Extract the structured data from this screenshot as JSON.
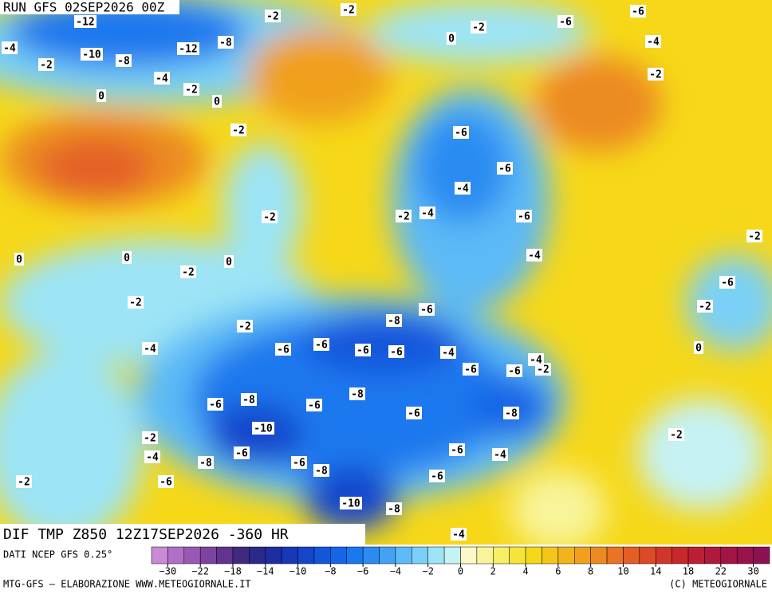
{
  "header": {
    "run": "RUN GFS 02SEP2026 00Z",
    "product": "DIF TMP Z850 12Z17SEP2026 -360 HR"
  },
  "footer": {
    "source": "DATI NCEP GFS 0.25°",
    "credit": "MTG-GFS — ELABORAZIONE WWW.METEOGIORNALE.IT",
    "copyright": "(C) METEOGIORNALE"
  },
  "map": {
    "labels": [
      "-12",
      "-10",
      "-8",
      "-12",
      "-8",
      "-4",
      "-2",
      "-4",
      "-2",
      "0",
      "0",
      "-2",
      "-2",
      "0",
      "-2",
      "-6",
      "-4",
      "-2",
      "-6",
      "-2",
      "-6",
      "-6",
      "-4",
      "-4",
      "-2",
      "-6",
      "-2",
      "0",
      "0",
      "0",
      "-2",
      "-2",
      "-4",
      "-2",
      "-8",
      "-6",
      "-6",
      "-6",
      "-6",
      "-6",
      "-4",
      "-6",
      "-6",
      "-2",
      "-8",
      "-6",
      "-6",
      "-8",
      "-6",
      "-8",
      "-10",
      "-2",
      "-4",
      "-8",
      "-6",
      "-6",
      "-8",
      "-6",
      "-4",
      "-6",
      "-6",
      "-2",
      "-10",
      "-8",
      "-4",
      "0",
      "-2",
      "-6",
      "-2",
      "-2",
      "-4",
      "-4"
    ]
  },
  "legend": {
    "ticks": [
      {
        "value": -30,
        "label": "−30"
      },
      {
        "value": -22,
        "label": "−22"
      },
      {
        "value": -18,
        "label": "−18"
      },
      {
        "value": -14,
        "label": "−14"
      },
      {
        "value": -10,
        "label": "−10"
      },
      {
        "value": -8,
        "label": "−8"
      },
      {
        "value": -6,
        "label": "−6"
      },
      {
        "value": -4,
        "label": "−4"
      },
      {
        "value": -2,
        "label": "−2"
      },
      0,
      2,
      4,
      6,
      8,
      10,
      14,
      18,
      22,
      30
    ],
    "colors": [
      "#c98ad6",
      "#b070c8",
      "#9858b4",
      "#7c44a0",
      "#603490",
      "#402a80",
      "#2a2a88",
      "#1c2ea0",
      "#1838b8",
      "#1446cc",
      "#1256dc",
      "#1466e6",
      "#1a78ee",
      "#2a8cf2",
      "#44a2f4",
      "#5cbaf6",
      "#7ad0f6",
      "#9ce4f6",
      "#c6f2f4",
      "#fafac8",
      "#f8f49a",
      "#f6ee66",
      "#f6e436",
      "#f6d818",
      "#f4c618",
      "#f2b41a",
      "#f0a01c",
      "#ec8a20",
      "#e87424",
      "#e45e26",
      "#dc4a28",
      "#d2362a",
      "#c8282c",
      "#bc1e34",
      "#b0183c",
      "#a41444",
      "#98124c",
      "#8c1054"
    ]
  }
}
